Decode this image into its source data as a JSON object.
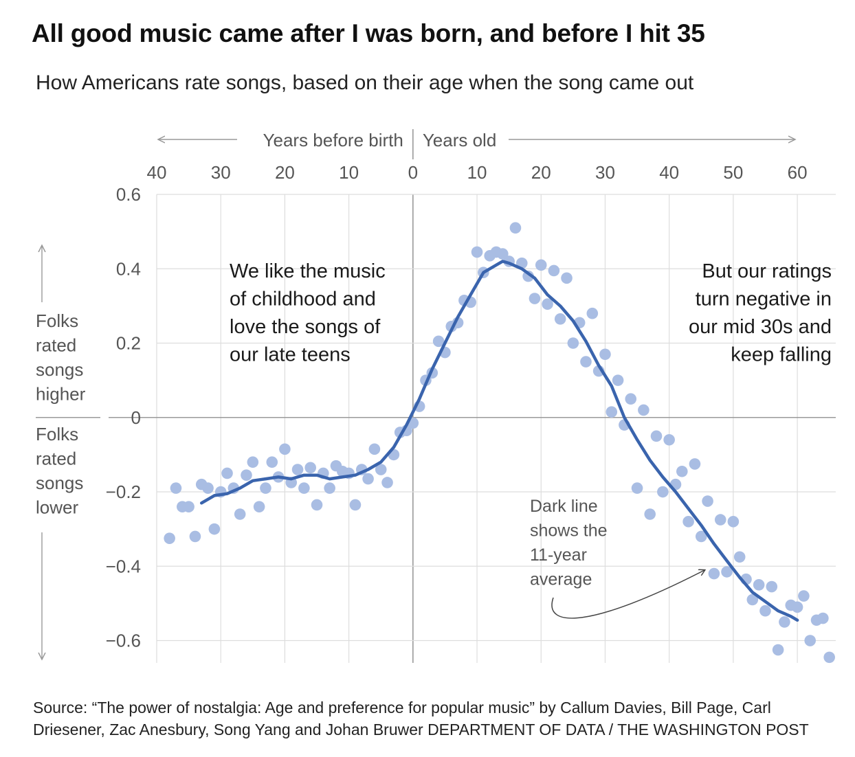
{
  "title": "All good music came after I was born, and before I hit 35",
  "subtitle": "How Americans rate songs, based on their age when the song came out",
  "source_line1": "Source: “The power of nostalgia: Age and preference for popular music” by Callum Davies, Bill Page, Carl",
  "source_line2": "Driesener, Zac Anesbury, Song Yang and Johan Bruwer DEPARTMENT OF DATA / THE WASHINGTON POST",
  "colors": {
    "dots": "#a9bde3",
    "line": "#3a64ad",
    "grid": "#dddddd",
    "axis": "#999999",
    "text": "#555555",
    "arrow": "#444444"
  },
  "chart_data": {
    "type": "scatter",
    "x_header_left": "Years before birth",
    "x_header_right": "Years old",
    "x_tick_labels": [
      "40",
      "30",
      "20",
      "10",
      "0",
      "10",
      "20",
      "30",
      "40",
      "50",
      "60"
    ],
    "x_tick_values": [
      -40,
      -30,
      -20,
      -10,
      0,
      10,
      20,
      30,
      40,
      50,
      60
    ],
    "xlim": [
      -40,
      66
    ],
    "ylim": [
      -0.66,
      0.6
    ],
    "y_tick_labels": [
      "0.6",
      "0.4",
      "0.2",
      "0",
      "−0.2",
      "−0.4",
      "−0.6"
    ],
    "y_tick_values": [
      0.6,
      0.4,
      0.2,
      0,
      -0.2,
      -0.4,
      -0.6
    ],
    "y_label_up": [
      "Folks",
      "rated",
      "songs",
      "higher"
    ],
    "y_label_down": [
      "Folks",
      "rated",
      "songs",
      "lower"
    ],
    "grid": true,
    "annotations": {
      "left": [
        "We like the music",
        "of childhood and",
        "love the songs of",
        "our late teens"
      ],
      "right": [
        "But our ratings",
        "turn negative in",
        "our mid 30s and",
        "keep falling"
      ],
      "line_note": [
        "Dark line",
        "shows the",
        "11-year",
        "average"
      ]
    },
    "series": [
      {
        "kind": "points",
        "x": [
          -38,
          -37,
          -36,
          -35,
          -34,
          -33,
          -32,
          -31,
          -30,
          -29,
          -28,
          -27,
          -26,
          -25,
          -24,
          -23,
          -22,
          -21,
          -20,
          -19,
          -18,
          -17,
          -16,
          -15,
          -14,
          -13,
          -12,
          -11,
          -10,
          -9,
          -8,
          -7,
          -6,
          -5,
          -4,
          -3,
          -2,
          -1,
          0,
          1,
          2,
          3,
          4,
          5,
          6,
          7,
          8,
          9,
          10,
          11,
          12,
          13,
          14,
          15,
          16,
          17,
          18,
          19,
          20,
          21,
          22,
          23,
          24,
          25,
          26,
          27,
          28,
          29,
          30,
          31,
          32,
          33,
          34,
          35,
          36,
          37,
          38,
          39,
          40,
          41,
          42,
          43,
          44,
          45,
          46,
          47,
          48,
          49,
          50,
          51,
          52,
          53,
          54,
          55,
          56,
          57,
          58,
          59,
          60,
          61,
          62,
          63,
          64,
          65
        ],
        "y": [
          -0.325,
          -0.19,
          -0.24,
          -0.24,
          -0.32,
          -0.18,
          -0.19,
          -0.3,
          -0.2,
          -0.15,
          -0.19,
          -0.26,
          -0.155,
          -0.12,
          -0.24,
          -0.19,
          -0.12,
          -0.16,
          -0.085,
          -0.175,
          -0.14,
          -0.19,
          -0.135,
          -0.235,
          -0.15,
          -0.19,
          -0.13,
          -0.145,
          -0.15,
          -0.235,
          -0.14,
          -0.165,
          -0.085,
          -0.14,
          -0.175,
          -0.1,
          -0.04,
          -0.035,
          -0.015,
          0.03,
          0.1,
          0.12,
          0.205,
          0.175,
          0.245,
          0.255,
          0.315,
          0.31,
          0.445,
          0.39,
          0.435,
          0.445,
          0.44,
          0.42,
          0.51,
          0.415,
          0.38,
          0.32,
          0.41,
          0.305,
          0.395,
          0.265,
          0.375,
          0.2,
          0.255,
          0.15,
          0.28,
          0.125,
          0.17,
          0.015,
          0.1,
          -0.02,
          0.05,
          -0.19,
          0.02,
          -0.26,
          -0.05,
          -0.2,
          -0.06,
          -0.18,
          -0.145,
          -0.28,
          -0.125,
          -0.32,
          -0.225,
          -0.42,
          -0.275,
          -0.415,
          -0.28,
          -0.375,
          -0.435,
          -0.49,
          -0.45,
          -0.52,
          -0.455,
          -0.625,
          -0.55,
          -0.505,
          -0.51,
          -0.48,
          -0.6,
          -0.545,
          -0.54,
          -0.645
        ]
      },
      {
        "kind": "line",
        "name": "11-year average",
        "x": [
          -33,
          -31,
          -29,
          -27,
          -25,
          -23,
          -21,
          -19,
          -17,
          -15,
          -13,
          -11,
          -9,
          -7,
          -5,
          -3,
          -1,
          1,
          3,
          5,
          7,
          9,
          11,
          13,
          14,
          15,
          17,
          19,
          21,
          23,
          25,
          27,
          29,
          31,
          33,
          35,
          37,
          39,
          41,
          43,
          45,
          47,
          49,
          51,
          53,
          55,
          57,
          59,
          60
        ],
        "y": [
          -0.23,
          -0.21,
          -0.205,
          -0.19,
          -0.17,
          -0.165,
          -0.16,
          -0.165,
          -0.155,
          -0.155,
          -0.165,
          -0.16,
          -0.155,
          -0.14,
          -0.12,
          -0.08,
          -0.02,
          0.05,
          0.13,
          0.2,
          0.27,
          0.33,
          0.39,
          0.41,
          0.42,
          0.415,
          0.4,
          0.375,
          0.33,
          0.3,
          0.26,
          0.205,
          0.14,
          0.085,
          0.0,
          -0.06,
          -0.115,
          -0.16,
          -0.2,
          -0.245,
          -0.29,
          -0.34,
          -0.385,
          -0.43,
          -0.47,
          -0.495,
          -0.52,
          -0.535,
          -0.545
        ]
      }
    ]
  }
}
